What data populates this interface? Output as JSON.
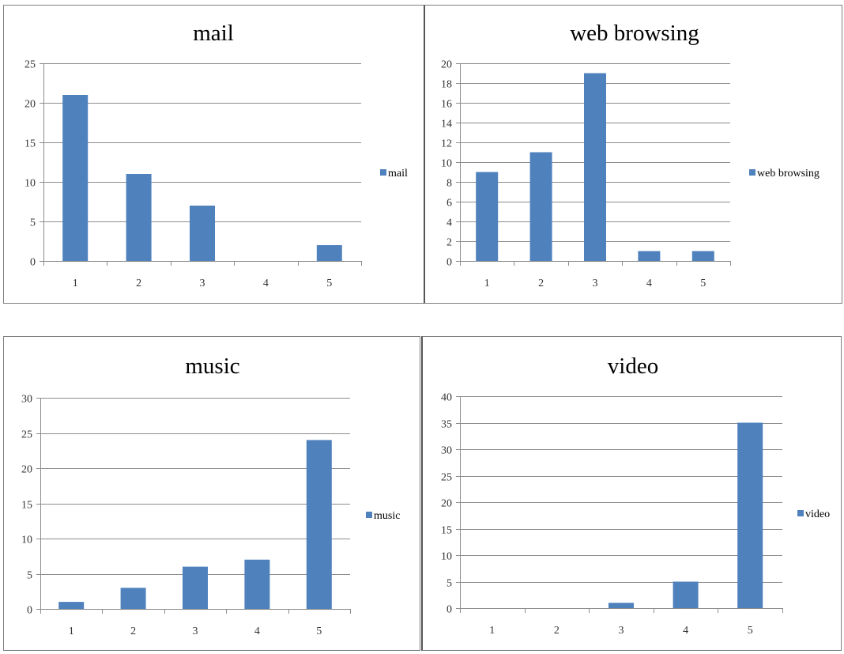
{
  "colors": {
    "bar": "#4f81bd",
    "grid": "#8c8c8c",
    "background": "#ffffff"
  },
  "chart_data": [
    {
      "type": "bar",
      "title": "mail",
      "categories": [
        "1",
        "2",
        "3",
        "4",
        "5"
      ],
      "series": [
        {
          "name": "mail",
          "values": [
            21,
            11,
            7,
            0,
            2
          ]
        }
      ],
      "xlabel": "",
      "ylabel": "",
      "ylim": [
        0,
        25
      ],
      "yticks": [
        0,
        5,
        10,
        15,
        20,
        25
      ],
      "grid": true,
      "legend": "right"
    },
    {
      "type": "bar",
      "title": "web browsing",
      "categories": [
        "1",
        "2",
        "3",
        "4",
        "5"
      ],
      "series": [
        {
          "name": "web browsing",
          "values": [
            9,
            11,
            19,
            1,
            1
          ]
        }
      ],
      "xlabel": "",
      "ylabel": "",
      "ylim": [
        0,
        20
      ],
      "yticks": [
        0,
        2,
        4,
        6,
        8,
        10,
        12,
        14,
        16,
        18,
        20
      ],
      "grid": true,
      "legend": "right"
    },
    {
      "type": "bar",
      "title": "music",
      "categories": [
        "1",
        "2",
        "3",
        "4",
        "5"
      ],
      "series": [
        {
          "name": "music",
          "values": [
            1,
            3,
            6,
            7,
            24
          ]
        }
      ],
      "xlabel": "",
      "ylabel": "",
      "ylim": [
        0,
        30
      ],
      "yticks": [
        0,
        5,
        10,
        15,
        20,
        25,
        30
      ],
      "grid": true,
      "legend": "right"
    },
    {
      "type": "bar",
      "title": "video",
      "categories": [
        "1",
        "2",
        "3",
        "4",
        "5"
      ],
      "series": [
        {
          "name": "video",
          "values": [
            0,
            0,
            1,
            5,
            35
          ]
        }
      ],
      "xlabel": "",
      "ylabel": "",
      "ylim": [
        0,
        40
      ],
      "yticks": [
        0,
        5,
        10,
        15,
        20,
        25,
        30,
        35,
        40
      ],
      "grid": true,
      "legend": "right"
    }
  ]
}
